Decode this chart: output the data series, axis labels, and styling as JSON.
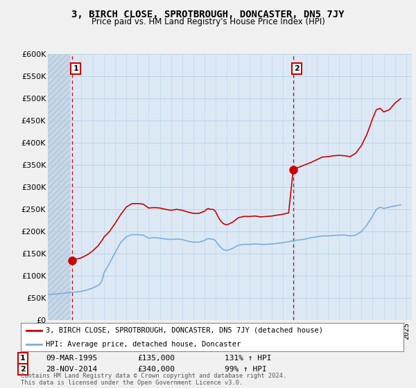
{
  "title": "3, BIRCH CLOSE, SPROTBROUGH, DONCASTER, DN5 7JY",
  "subtitle": "Price paid vs. HM Land Registry's House Price Index (HPI)",
  "ylabel_ticks": [
    "£0",
    "£50K",
    "£100K",
    "£150K",
    "£200K",
    "£250K",
    "£300K",
    "£350K",
    "£400K",
    "£450K",
    "£500K",
    "£550K",
    "£600K"
  ],
  "ytick_values": [
    0,
    50000,
    100000,
    150000,
    200000,
    250000,
    300000,
    350000,
    400000,
    450000,
    500000,
    550000,
    600000
  ],
  "ylim": [
    0,
    600000
  ],
  "xlim_start": 1993.0,
  "xlim_end": 2025.5,
  "sale1_x": 1995.19,
  "sale1_y": 135000,
  "sale1_label": "1",
  "sale2_x": 2014.91,
  "sale2_y": 340000,
  "sale2_label": "2",
  "sale_color": "#cc0000",
  "hpi_color": "#7aaddb",
  "vline_color": "#cc0000",
  "vline_style": "--",
  "background_color": "#f0f0f0",
  "plot_bg_color": "#dce9f5",
  "grid_color": "#b8cfe0",
  "legend_label_sale": "3, BIRCH CLOSE, SPROTBROUGH, DONCASTER, DN5 7JY (detached house)",
  "legend_label_hpi": "HPI: Average price, detached house, Doncaster",
  "anno1_date": "09-MAR-1995",
  "anno1_price": "£135,000",
  "anno1_hpi": "131% ↑ HPI",
  "anno2_date": "28-NOV-2014",
  "anno2_price": "£340,000",
  "anno2_hpi": "99% ↑ HPI",
  "footer": "Contains HM Land Registry data © Crown copyright and database right 2024.\nThis data is licensed under the Open Government Licence v3.0.",
  "hpi_x": [
    1993.0,
    1993.08,
    1993.17,
    1993.25,
    1993.33,
    1993.42,
    1993.5,
    1993.58,
    1993.67,
    1993.75,
    1993.83,
    1993.92,
    1994.0,
    1994.08,
    1994.17,
    1994.25,
    1994.33,
    1994.42,
    1994.5,
    1994.58,
    1994.67,
    1994.75,
    1994.83,
    1994.92,
    1995.0,
    1995.08,
    1995.17,
    1995.25,
    1995.33,
    1995.42,
    1995.5,
    1995.58,
    1995.67,
    1995.75,
    1995.83,
    1995.92,
    1996.0,
    1996.08,
    1996.17,
    1996.25,
    1996.33,
    1996.42,
    1996.5,
    1996.58,
    1996.67,
    1996.75,
    1996.83,
    1996.92,
    1997.0,
    1997.08,
    1997.17,
    1997.25,
    1997.33,
    1997.42,
    1997.5,
    1997.58,
    1997.67,
    1997.75,
    1997.83,
    1997.92,
    1998.0,
    1998.5,
    1999.0,
    1999.5,
    2000.0,
    2000.5,
    2001.0,
    2001.5,
    2002.0,
    2002.5,
    2003.0,
    2003.5,
    2004.0,
    2004.5,
    2005.0,
    2005.5,
    2006.0,
    2006.5,
    2007.0,
    2007.17,
    2007.33,
    2007.5,
    2007.67,
    2007.83,
    2008.0,
    2008.17,
    2008.33,
    2008.5,
    2008.67,
    2008.83,
    2009.0,
    2009.5,
    2010.0,
    2010.5,
    2011.0,
    2011.5,
    2012.0,
    2012.5,
    2013.0,
    2013.5,
    2014.0,
    2014.5,
    2015.0,
    2015.5,
    2016.0,
    2016.5,
    2017.0,
    2017.5,
    2018.0,
    2018.5,
    2019.0,
    2019.5,
    2020.0,
    2020.5,
    2021.0,
    2021.5,
    2022.0,
    2022.33,
    2022.67,
    2023.0,
    2023.5,
    2024.0,
    2024.5
  ],
  "hpi_y": [
    58000,
    58200,
    58300,
    58400,
    58500,
    58600,
    58700,
    58800,
    58900,
    59000,
    59100,
    59200,
    59500,
    59700,
    59900,
    60100,
    60300,
    60500,
    60800,
    61000,
    61300,
    61500,
    61800,
    62000,
    62300,
    62500,
    62700,
    62900,
    63100,
    63300,
    63500,
    63700,
    63900,
    64100,
    64300,
    64500,
    65000,
    65500,
    66000,
    66500,
    67000,
    67500,
    68000,
    68800,
    69500,
    70200,
    71000,
    71800,
    72500,
    73500,
    74500,
    75500,
    76500,
    77500,
    78500,
    80000,
    82000,
    85000,
    90000,
    97000,
    106000,
    128000,
    152000,
    175000,
    188000,
    193000,
    193000,
    192000,
    185000,
    186000,
    185000,
    183000,
    182000,
    183000,
    182000,
    178000,
    176000,
    176000,
    180000,
    183000,
    184000,
    183000,
    183000,
    182000,
    178000,
    172000,
    167000,
    163000,
    159000,
    158000,
    157000,
    162000,
    169000,
    171000,
    171000,
    172000,
    171000,
    171000,
    172000,
    173000,
    175000,
    177000,
    180000,
    181000,
    183000,
    186000,
    188000,
    190000,
    190000,
    191000,
    192000,
    192000,
    190000,
    192000,
    200000,
    215000,
    235000,
    250000,
    255000,
    252000,
    255000,
    258000,
    260000
  ],
  "sale_x_seg1": [
    1995.19,
    1995.25,
    1995.33,
    1995.42,
    1995.5,
    1995.58,
    1995.67,
    1995.75,
    1995.83,
    1995.92,
    1996.0,
    1996.08,
    1996.17,
    1996.25,
    1996.33,
    1996.42,
    1996.5,
    1996.58,
    1996.67,
    1996.75,
    1996.83,
    1996.92,
    1997.0,
    1997.08,
    1997.17,
    1997.25,
    1997.33,
    1997.42,
    1997.5,
    1997.58,
    1997.67,
    1997.75,
    1997.83,
    1997.92,
    1998.0,
    1998.5,
    1999.0,
    1999.5,
    2000.0,
    2000.5,
    2001.0,
    2001.5,
    2002.0,
    2002.5,
    2003.0,
    2003.5,
    2004.0,
    2004.5,
    2005.0,
    2005.5,
    2006.0,
    2006.5,
    2007.0,
    2007.17,
    2007.33,
    2007.5,
    2007.67,
    2007.83,
    2008.0,
    2008.17,
    2008.33,
    2008.5,
    2008.67,
    2008.83,
    2009.0,
    2009.5,
    2010.0,
    2010.5,
    2011.0,
    2011.5,
    2012.0,
    2012.5,
    2013.0,
    2013.5,
    2014.0,
    2014.5,
    2014.91
  ],
  "sale_y_seg1": [
    135000,
    136000,
    136500,
    137000,
    137500,
    138000,
    138500,
    139000,
    139500,
    140000,
    141000,
    142000,
    143000,
    144000,
    145000,
    146000,
    147000,
    148500,
    150000,
    151500,
    153000,
    154500,
    156000,
    158000,
    160000,
    162000,
    164000,
    166000,
    168000,
    171000,
    174000,
    177000,
    180000,
    183000,
    187000,
    200000,
    218000,
    238000,
    255000,
    263000,
    263000,
    262000,
    253000,
    254000,
    253000,
    250000,
    248000,
    250000,
    248000,
    244000,
    241000,
    241000,
    246000,
    250000,
    252000,
    250000,
    250000,
    249000,
    244000,
    235000,
    228000,
    222000,
    218000,
    216000,
    215000,
    221000,
    231000,
    234000,
    234000,
    235000,
    233000,
    234000,
    235000,
    237000,
    239000,
    242000,
    340000
  ],
  "sale_x_seg2": [
    2014.91,
    2015.0,
    2015.5,
    2016.0,
    2016.5,
    2017.0,
    2017.5,
    2018.0,
    2018.5,
    2019.0,
    2019.5,
    2020.0,
    2020.5,
    2021.0,
    2021.5,
    2022.0,
    2022.33,
    2022.67,
    2023.0,
    2023.5,
    2024.0,
    2024.5
  ],
  "sale_y_seg2": [
    340000,
    341000,
    346000,
    351000,
    356000,
    362000,
    368000,
    369000,
    371000,
    372000,
    371000,
    369000,
    377000,
    394000,
    420000,
    455000,
    475000,
    478000,
    470000,
    475000,
    490000,
    500000
  ]
}
